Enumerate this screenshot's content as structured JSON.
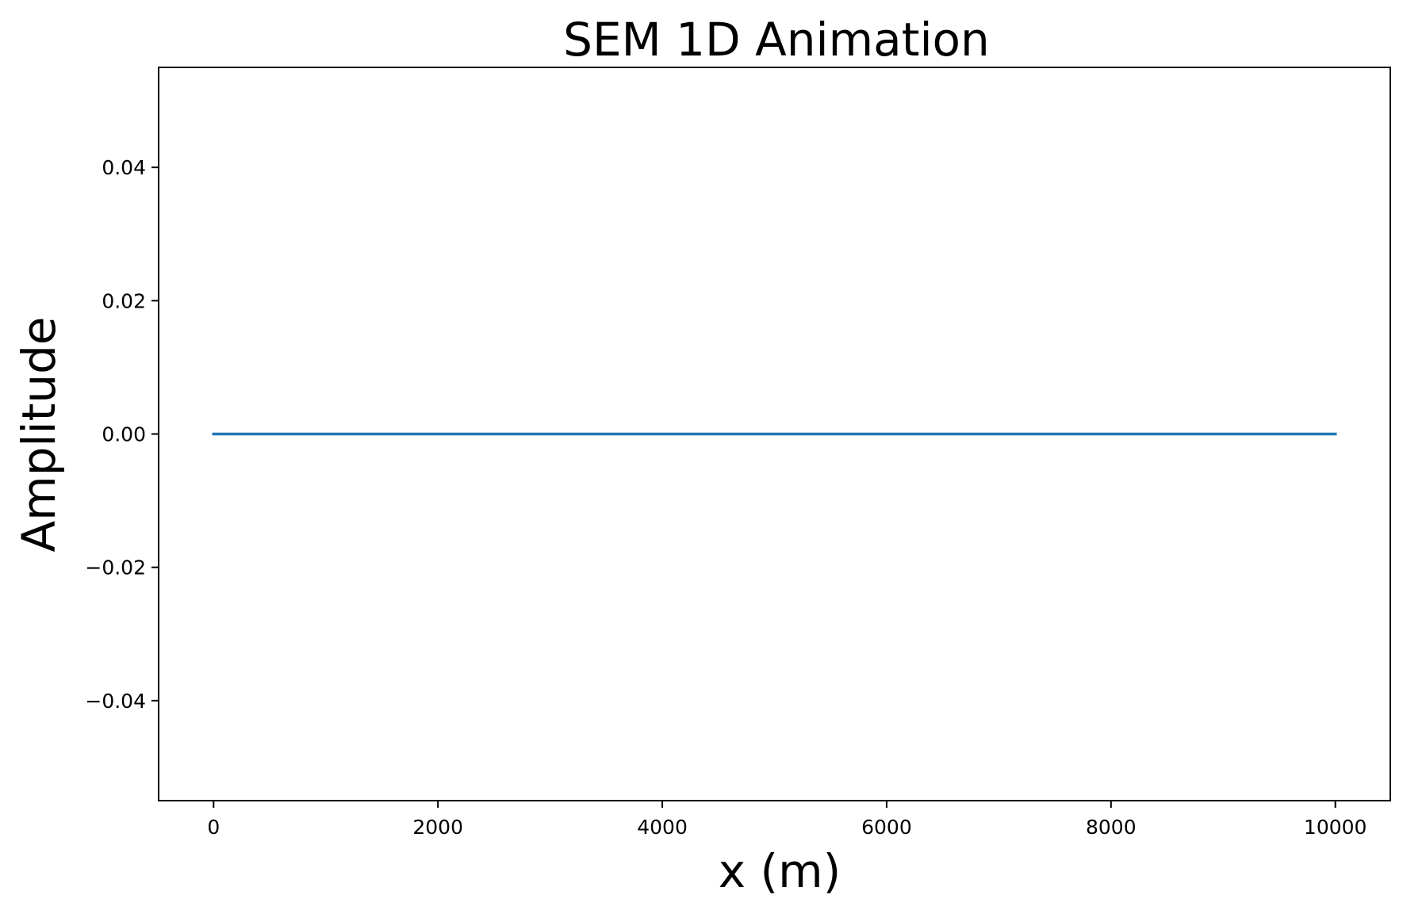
{
  "chart_data": {
    "type": "line",
    "title": "SEM 1D Animation",
    "xlabel": "x (m)",
    "ylabel": "Amplitude",
    "xlim": [
      -490,
      10490
    ],
    "ylim": [
      -0.055,
      0.055
    ],
    "x_ticks": [
      0,
      2000,
      4000,
      6000,
      8000,
      10000
    ],
    "x_tick_labels": [
      "0",
      "2000",
      "4000",
      "6000",
      "8000",
      "10000"
    ],
    "y_ticks": [
      0.04,
      0.02,
      0.0,
      -0.02,
      -0.04
    ],
    "y_tick_labels": [
      "0.04",
      "0.02",
      "0.00",
      "−0.02",
      "−0.04"
    ],
    "grid": false,
    "series": [
      {
        "color": "#1f77b4",
        "x": [
          0,
          10000
        ],
        "y": [
          0,
          0
        ]
      }
    ]
  }
}
